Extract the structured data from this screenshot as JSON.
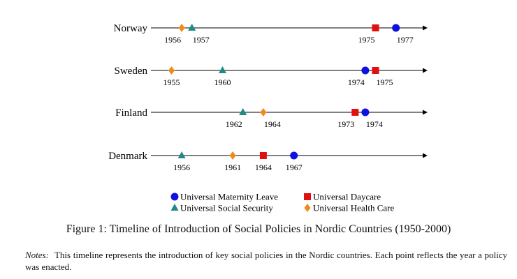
{
  "chart_data": {
    "type": "timeline",
    "title": "Timeline of Introduction of Social Policies in Nordic Countries (1950-2000)",
    "countries": [
      {
        "name": "Norway",
        "events": [
          {
            "policy": "health",
            "year": 1956,
            "label": "1956"
          },
          {
            "policy": "social",
            "year": 1957,
            "label": "1957"
          },
          {
            "policy": "daycare",
            "year": 1975,
            "label": "1975"
          },
          {
            "policy": "maternity",
            "year": 1977,
            "label": "1977"
          }
        ]
      },
      {
        "name": "Sweden",
        "events": [
          {
            "policy": "health",
            "year": 1955,
            "label": "1955"
          },
          {
            "policy": "social",
            "year": 1960,
            "label": "1960"
          },
          {
            "policy": "maternity",
            "year": 1974,
            "label": "1974"
          },
          {
            "policy": "daycare",
            "year": 1975,
            "label": "1975"
          }
        ]
      },
      {
        "name": "Finland",
        "events": [
          {
            "policy": "social",
            "year": 1962,
            "label": "1962"
          },
          {
            "policy": "health",
            "year": 1964,
            "label": "1964"
          },
          {
            "policy": "daycare",
            "year": 1973,
            "label": "1973"
          },
          {
            "policy": "maternity",
            "year": 1974,
            "label": "1974"
          }
        ]
      },
      {
        "name": "Denmark",
        "events": [
          {
            "policy": "social",
            "year": 1956,
            "label": "1956"
          },
          {
            "policy": "health",
            "year": 1961,
            "label": "1961"
          },
          {
            "policy": "daycare",
            "year": 1964,
            "label": "1964"
          },
          {
            "policy": "maternity",
            "year": 1967,
            "label": "1967"
          }
        ]
      }
    ],
    "legend": [
      {
        "key": "maternity",
        "label": "Universal Maternity Leave",
        "shape": "circle",
        "color": "#1010e0"
      },
      {
        "key": "daycare",
        "label": "Universal Daycare",
        "shape": "square",
        "color": "#e01010"
      },
      {
        "key": "social",
        "label": "Universal Social Security",
        "shape": "triangle",
        "color": "#1f8a86"
      },
      {
        "key": "health",
        "label": "Universal Health Care",
        "shape": "diamond",
        "color": "#f08a1a"
      }
    ]
  },
  "caption": "Figure 1: Timeline of Introduction of Social Policies in Nordic Countries (1950-2000)",
  "notes": {
    "label": "Notes:",
    "text": "This timeline represents the introduction of key social policies in the Nordic countries. Each point reflects the year a policy was enacted."
  }
}
